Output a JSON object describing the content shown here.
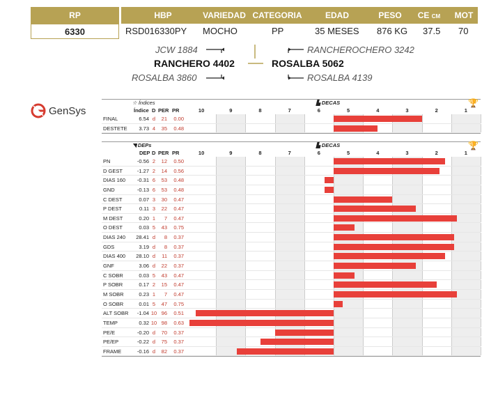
{
  "header": {
    "rp_label": "RP",
    "hbp_label": "HBP",
    "variedad_label": "VARIEDAD",
    "categoria_label": "CATEGORIA",
    "edad_label": "EDAD",
    "peso_label": "PESO",
    "ce_label": "CE",
    "ce_unit": "CM",
    "mot_label": "MOT"
  },
  "animal": {
    "rp": "6330",
    "hbp": "RSD016330PY",
    "variedad": "MOCHO",
    "categoria": "PP",
    "edad": "35 MESES",
    "peso": "876 KG",
    "ce": "37.5",
    "mot": "70"
  },
  "pedigree": {
    "sire": "RANCHERO 4402",
    "sire_sire": "JCW 1884",
    "sire_dam": "ROSALBA 3860",
    "dam": "ROSALBA 5062",
    "dam_sire": "RANCHEROCHERO 3242",
    "dam_dam": "ROSALBA 4139"
  },
  "logo_text": "GenSys",
  "colors": {
    "gold": "#b7a254",
    "bar": "#e8403a",
    "value_red": "#c0392b"
  },
  "indices_panel": {
    "title": "Índices",
    "decas_label": "DECAS",
    "col_index": "Índice",
    "col_d": "D",
    "col_per": "PER",
    "col_pr": "PR",
    "ticks": [
      "10",
      "9",
      "8",
      "7",
      "6",
      "5",
      "4",
      "3",
      "2",
      "1"
    ]
  },
  "deps_panel": {
    "title": "DEPs",
    "decas_label": "DECAS",
    "col_dep": "DEP",
    "col_d": "D",
    "col_per": "PER",
    "col_pr": "PR",
    "ticks": [
      "10",
      "9",
      "8",
      "7",
      "6",
      "5",
      "4",
      "3",
      "2",
      "1"
    ]
  },
  "chart_data": [
    {
      "type": "bar",
      "title": "Índices",
      "rows": [
        {
          "label": "FINAL",
          "value": "6.54",
          "d": "d",
          "per": "21",
          "pr": "0.00",
          "bar_from": 5.5,
          "bar_to": 2.5
        },
        {
          "label": "DESTETE",
          "value": "3.73",
          "d": "4",
          "per": "35",
          "pr": "0.48",
          "bar_from": 5.5,
          "bar_to": 4.0
        }
      ]
    },
    {
      "type": "bar",
      "title": "DEPs",
      "rows": [
        {
          "label": "PN",
          "value": "-0.56",
          "d": "2",
          "per": "12",
          "pr": "0.50",
          "bar_from": 5.5,
          "bar_to": 1.7
        },
        {
          "label": "D GEST",
          "value": "-1.27",
          "d": "2",
          "per": "14",
          "pr": "0.56",
          "bar_from": 5.5,
          "bar_to": 1.9
        },
        {
          "label": "DIAS 160",
          "value": "-0.31",
          "d": "6",
          "per": "53",
          "pr": "0.48",
          "bar_from": 5.5,
          "bar_to": 5.8
        },
        {
          "label": "GND",
          "value": "-0.13",
          "d": "6",
          "per": "53",
          "pr": "0.48",
          "bar_from": 5.5,
          "bar_to": 5.8
        },
        {
          "label": "C DEST",
          "value": "0.07",
          "d": "3",
          "per": "30",
          "pr": "0.47",
          "bar_from": 5.5,
          "bar_to": 3.5
        },
        {
          "label": "P DEST",
          "value": "0.11",
          "d": "3",
          "per": "22",
          "pr": "0.47",
          "bar_from": 5.5,
          "bar_to": 2.7
        },
        {
          "label": "M DEST",
          "value": "0.20",
          "d": "1",
          "per": "7",
          "pr": "0.47",
          "bar_from": 5.5,
          "bar_to": 1.3
        },
        {
          "label": "O DEST",
          "value": "0.03",
          "d": "5",
          "per": "43",
          "pr": "0.75",
          "bar_from": 5.5,
          "bar_to": 4.8
        },
        {
          "label": "DIAS 240",
          "value": "28.41",
          "d": "d",
          "per": "8",
          "pr": "0.37",
          "bar_from": 5.5,
          "bar_to": 1.4
        },
        {
          "label": "GDS",
          "value": "3.19",
          "d": "d",
          "per": "8",
          "pr": "0.37",
          "bar_from": 5.5,
          "bar_to": 1.4
        },
        {
          "label": "DIAS 400",
          "value": "28.10",
          "d": "d",
          "per": "11",
          "pr": "0.37",
          "bar_from": 5.5,
          "bar_to": 1.7
        },
        {
          "label": "GNF",
          "value": "3.06",
          "d": "d",
          "per": "22",
          "pr": "0.37",
          "bar_from": 5.5,
          "bar_to": 2.7
        },
        {
          "label": "C SOBR",
          "value": "0.03",
          "d": "5",
          "per": "43",
          "pr": "0.47",
          "bar_from": 5.5,
          "bar_to": 4.8
        },
        {
          "label": "P SOBR",
          "value": "0.17",
          "d": "2",
          "per": "15",
          "pr": "0.47",
          "bar_from": 5.5,
          "bar_to": 2.0
        },
        {
          "label": "M SOBR",
          "value": "0.23",
          "d": "1",
          "per": "7",
          "pr": "0.47",
          "bar_from": 5.5,
          "bar_to": 1.3
        },
        {
          "label": "O SOBR",
          "value": "0.01",
          "d": "5",
          "per": "47",
          "pr": "0.75",
          "bar_from": 5.5,
          "bar_to": 5.2
        },
        {
          "label": "ALT SOBR",
          "value": "-1.04",
          "d": "10",
          "per": "96",
          "pr": "0.51",
          "bar_from": 5.5,
          "bar_to": 10.2
        },
        {
          "label": "TEMP",
          "value": "0.32",
          "d": "10",
          "per": "98",
          "pr": "0.63",
          "bar_from": 5.5,
          "bar_to": 10.4
        },
        {
          "label": "PE/E",
          "value": "-0.20",
          "d": "d",
          "per": "70",
          "pr": "0.37",
          "bar_from": 5.5,
          "bar_to": 7.5
        },
        {
          "label": "PE/EP",
          "value": "-0.22",
          "d": "d",
          "per": "75",
          "pr": "0.37",
          "bar_from": 5.5,
          "bar_to": 8.0
        },
        {
          "label": "FRAME",
          "value": "-0.16",
          "d": "d",
          "per": "82",
          "pr": "0.37",
          "bar_from": 5.5,
          "bar_to": 8.8
        }
      ]
    }
  ]
}
